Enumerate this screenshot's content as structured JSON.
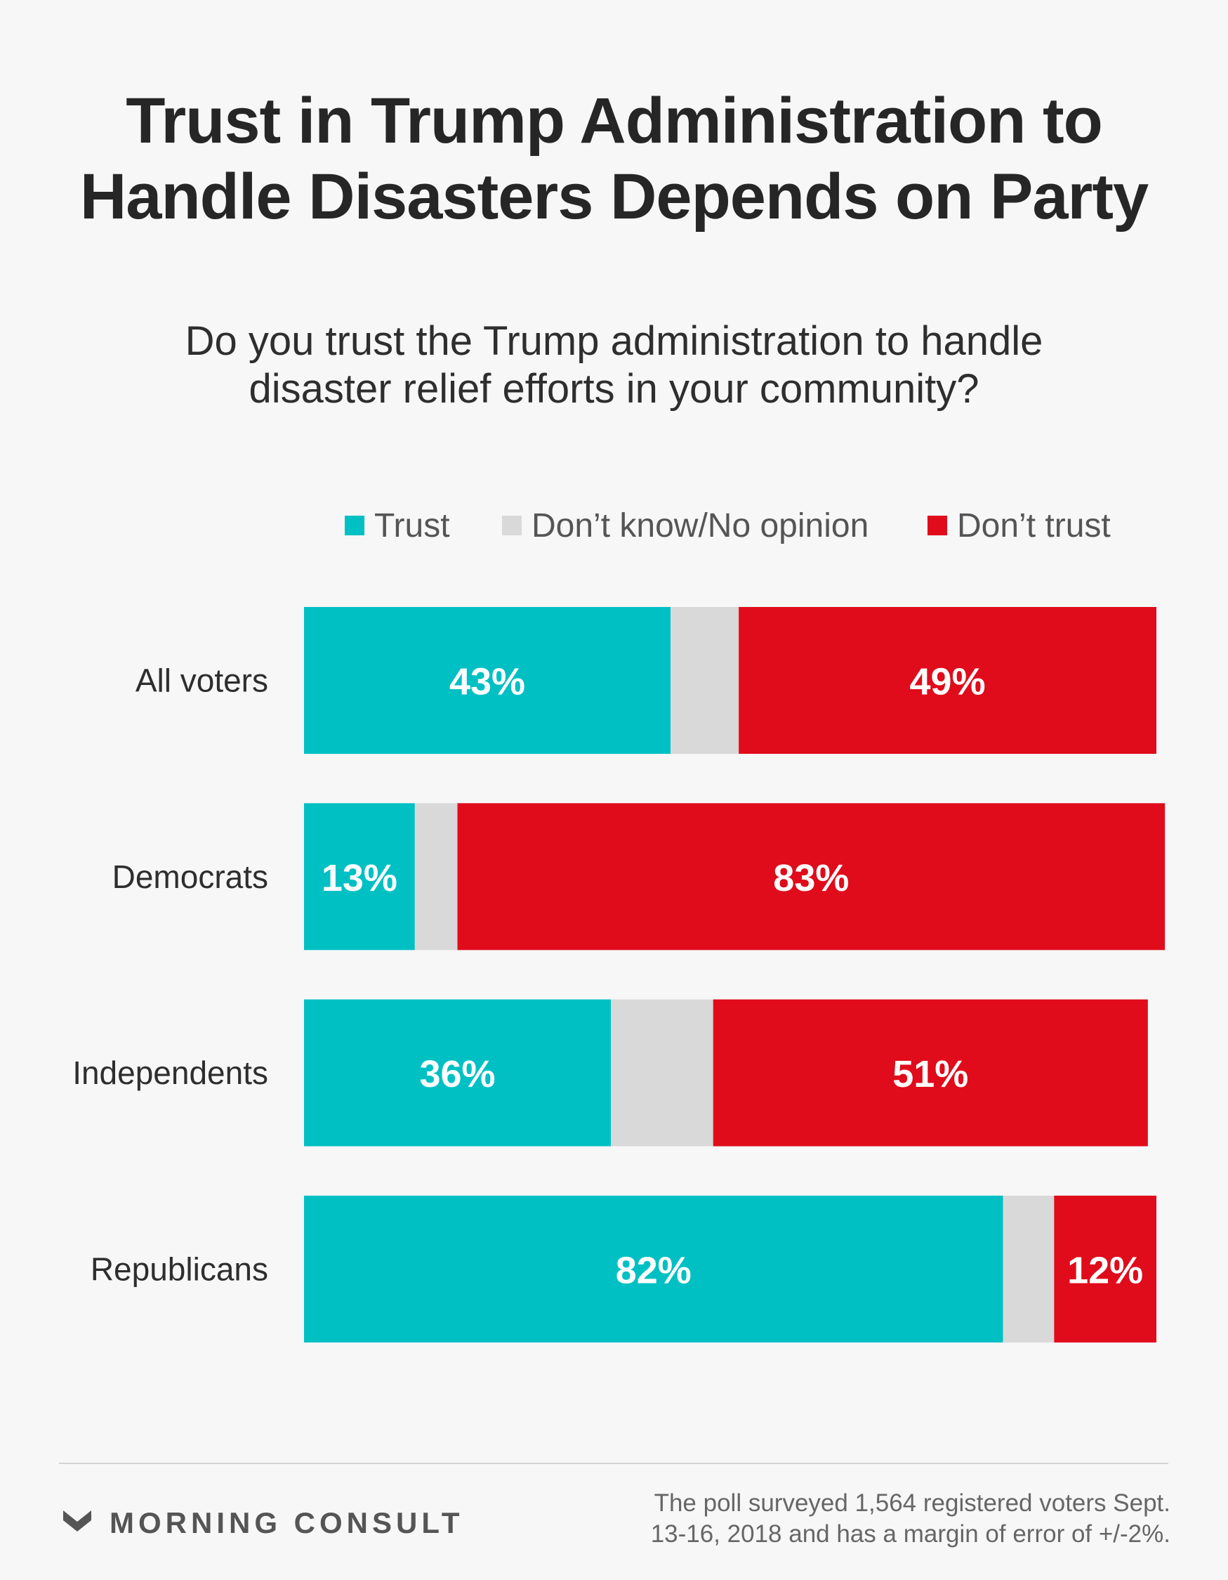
{
  "header": {
    "title_lines": [
      "Trust in Trump Administration to",
      "Handle Disasters Depends on Party"
    ],
    "subtitle_lines": [
      "Do you trust the Trump administration to handle",
      "disaster relief efforts in your community?"
    ]
  },
  "legend": [
    {
      "label": "Trust",
      "color": "#00c0c3"
    },
    {
      "label": "Don’t know/No opinion",
      "color": "#d9d9d9"
    },
    {
      "label": "Don’t trust",
      "color": "#e00b1b"
    }
  ],
  "chart_data": {
    "type": "bar",
    "orientation": "horizontal",
    "stacked": true,
    "categories": [
      "All voters",
      "Democrats",
      "Independents",
      "Republicans"
    ],
    "series": [
      {
        "name": "Trust",
        "values": [
          43,
          13,
          36,
          82
        ],
        "color": "#00c0c3",
        "show_labels": true
      },
      {
        "name": "Don’t know/No opinion",
        "values": [
          8,
          5,
          12,
          6
        ],
        "color": "#d9d9d9",
        "show_labels": false
      },
      {
        "name": "Don’t trust",
        "values": [
          49,
          83,
          51,
          12
        ],
        "color": "#e00b1b",
        "show_labels": true
      }
    ],
    "value_suffix": "%",
    "xlim": [
      0,
      100
    ],
    "legend_position": "top",
    "grid": false
  },
  "footer": {
    "brand": "MORNING CONSULT",
    "note_lines": [
      "The poll surveyed 1,564 registered voters Sept.",
      "13-16, 2018 and has a margin of error of +/-2%."
    ]
  }
}
